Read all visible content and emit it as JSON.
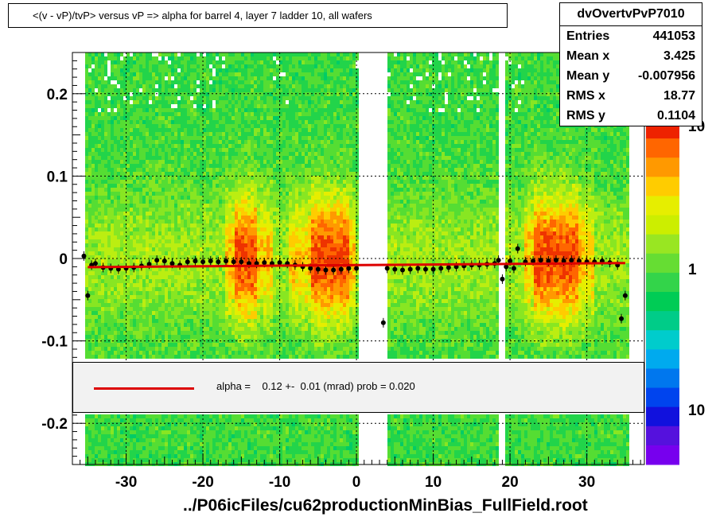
{
  "title": "<(v - vP)/tvP>  versus   vP => alpha for barrel 4, layer 7 ladder 10, all wafers",
  "stats": {
    "name": "dvOvertvPvP7010",
    "rows": [
      {
        "label": "Entries",
        "value": "441053"
      },
      {
        "label": "Mean x",
        "value": "3.425"
      },
      {
        "label": "Mean y",
        "value": "-0.007956"
      },
      {
        "label": "RMS x",
        "value": "18.77"
      },
      {
        "label": "RMS y",
        "value": "0.1104"
      }
    ]
  },
  "legend": {
    "text": "alpha =    0.12 +-  0.01 (mrad) prob = 0.020",
    "line_color": "#dd0000"
  },
  "footer": "../P06icFiles/cu62productionMinBias_FullField.root",
  "chart_data": {
    "type": "heatmap",
    "xlim": [
      -37,
      37.5
    ],
    "ylim": [
      -0.25,
      0.25
    ],
    "x_ticks": [
      -30,
      -20,
      -10,
      0,
      10,
      20,
      30
    ],
    "x_tick_labels": [
      "-30",
      "-20",
      "-10",
      "0",
      "10",
      "20",
      "30"
    ],
    "y_ticks": [
      -0.2,
      -0.1,
      0,
      0.1,
      0.2
    ],
    "y_tick_labels": [
      "-0.2",
      "-0.1",
      "0",
      "0.1",
      "0.2"
    ],
    "grid": true,
    "colorbar": {
      "scale": "log",
      "tick_labels": [
        "10",
        "1",
        "10"
      ]
    },
    "fit_line": {
      "x": [
        -35,
        35
      ],
      "y": [
        -0.0105,
        -0.0055
      ],
      "color": "#dd0000"
    },
    "profile_points": [
      {
        "x": -35.5,
        "y": 0.003
      },
      {
        "x": -35,
        "y": -0.045
      },
      {
        "x": -34.5,
        "y": -0.008
      },
      {
        "x": -34,
        "y": -0.006
      },
      {
        "x": -33,
        "y": -0.011
      },
      {
        "x": -32,
        "y": -0.012
      },
      {
        "x": -31,
        "y": -0.013
      },
      {
        "x": -30,
        "y": -0.012
      },
      {
        "x": -29,
        "y": -0.011
      },
      {
        "x": -28,
        "y": -0.009
      },
      {
        "x": -27,
        "y": -0.007
      },
      {
        "x": -26,
        "y": -0.002
      },
      {
        "x": -25,
        "y": -0.003
      },
      {
        "x": -24,
        "y": -0.006
      },
      {
        "x": -23,
        "y": -0.008
      },
      {
        "x": -22,
        "y": -0.004
      },
      {
        "x": -21,
        "y": -0.003
      },
      {
        "x": -20,
        "y": -0.004
      },
      {
        "x": -19,
        "y": -0.003
      },
      {
        "x": -18,
        "y": -0.004
      },
      {
        "x": -17,
        "y": -0.003
      },
      {
        "x": -16,
        "y": -0.004
      },
      {
        "x": -15,
        "y": -0.004
      },
      {
        "x": -14,
        "y": -0.006
      },
      {
        "x": -13,
        "y": -0.006
      },
      {
        "x": -12,
        "y": -0.005
      },
      {
        "x": -11,
        "y": -0.006
      },
      {
        "x": -10,
        "y": -0.005
      },
      {
        "x": -9,
        "y": -0.006
      },
      {
        "x": -8,
        "y": -0.008
      },
      {
        "x": -7,
        "y": -0.01
      },
      {
        "x": -6,
        "y": -0.012
      },
      {
        "x": -5,
        "y": -0.013
      },
      {
        "x": -4,
        "y": -0.014
      },
      {
        "x": -3,
        "y": -0.014
      },
      {
        "x": -2,
        "y": -0.013
      },
      {
        "x": -1,
        "y": -0.012
      },
      {
        "x": 0,
        "y": -0.012
      },
      {
        "x": 3.5,
        "y": -0.078
      },
      {
        "x": 4,
        "y": -0.012
      },
      {
        "x": 5,
        "y": -0.013
      },
      {
        "x": 6,
        "y": -0.014
      },
      {
        "x": 7,
        "y": -0.013
      },
      {
        "x": 8,
        "y": -0.012
      },
      {
        "x": 9,
        "y": -0.013
      },
      {
        "x": 10,
        "y": -0.013
      },
      {
        "x": 11,
        "y": -0.012
      },
      {
        "x": 12,
        "y": -0.011
      },
      {
        "x": 13,
        "y": -0.01
      },
      {
        "x": 14,
        "y": -0.009
      },
      {
        "x": 15,
        "y": -0.008
      },
      {
        "x": 16,
        "y": -0.008
      },
      {
        "x": 17,
        "y": -0.007
      },
      {
        "x": 18,
        "y": -0.006
      },
      {
        "x": 18.5,
        "y": -0.002
      },
      {
        "x": 19,
        "y": -0.025
      },
      {
        "x": 19.5,
        "y": -0.01
      },
      {
        "x": 20,
        "y": -0.003
      },
      {
        "x": 20.5,
        "y": -0.012
      },
      {
        "x": 21,
        "y": 0.012
      },
      {
        "x": 22,
        "y": -0.004
      },
      {
        "x": 23,
        "y": -0.003
      },
      {
        "x": 24,
        "y": -0.002
      },
      {
        "x": 25,
        "y": -0.003
      },
      {
        "x": 26,
        "y": -0.002
      },
      {
        "x": 27,
        "y": -0.003
      },
      {
        "x": 28,
        "y": -0.002
      },
      {
        "x": 29,
        "y": -0.003
      },
      {
        "x": 30,
        "y": -0.004
      },
      {
        "x": 31,
        "y": -0.004
      },
      {
        "x": 32,
        "y": -0.003
      },
      {
        "x": 33,
        "y": -0.005
      },
      {
        "x": 34,
        "y": -0.008
      },
      {
        "x": 34.5,
        "y": -0.073
      },
      {
        "x": 35,
        "y": -0.045
      }
    ]
  }
}
